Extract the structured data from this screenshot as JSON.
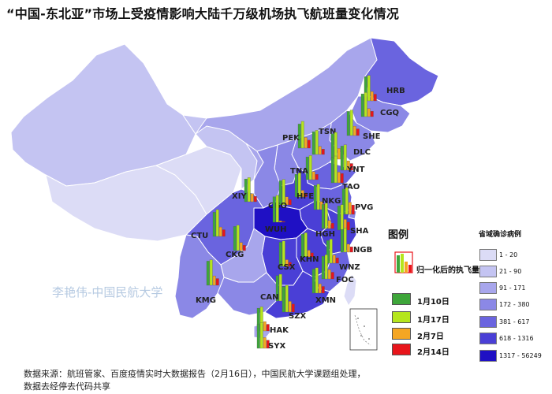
{
  "title": "“中国-东北亚”市场上受疫情影响大陆千万级机场执飞航班量变化情况",
  "watermark": "李艳伟-中国民航大学",
  "legend": {
    "title": "图例",
    "bar_label": "归一化后的执飞量",
    "dates": [
      {
        "label": "1月10日",
        "color": "#3ea63a"
      },
      {
        "label": "1月17日",
        "color": "#b5e61d"
      },
      {
        "label": "2月7日",
        "color": "#f5a623"
      },
      {
        "label": "2月14日",
        "color": "#e8151b"
      }
    ]
  },
  "case_legend": {
    "title": "省域确诊病例",
    "classes": [
      {
        "label": "1 - 20",
        "color": "#dcdcf6"
      },
      {
        "label": "21 - 90",
        "color": "#c4c4f2"
      },
      {
        "label": "91 - 171",
        "color": "#a8a6ec"
      },
      {
        "label": "172 - 380",
        "color": "#8b88e6"
      },
      {
        "label": "381 - 617",
        "color": "#6a64df"
      },
      {
        "label": "618 - 1316",
        "color": "#4a3fd6"
      },
      {
        "label": "1317 - 56249",
        "color": "#1f10c4"
      }
    ]
  },
  "airports": [
    {
      "code": "HRB",
      "values": [
        0.9,
        0.95,
        0.35,
        0.25
      ]
    },
    {
      "code": "CGQ",
      "values": [
        0.85,
        0.9,
        0.3,
        0.2
      ]
    },
    {
      "code": "SHE",
      "values": [
        0.9,
        0.95,
        0.35,
        0.25
      ]
    },
    {
      "code": "PEK",
      "values": [
        0.9,
        1.0,
        0.4,
        0.3
      ]
    },
    {
      "code": "TSN",
      "values": [
        0.85,
        0.9,
        0.3,
        0.2
      ]
    },
    {
      "code": "DLC",
      "values": [
        0.95,
        1.0,
        0.4,
        0.3
      ]
    },
    {
      "code": "YNT",
      "values": [
        0.9,
        0.95,
        0.35,
        0.25
      ]
    },
    {
      "code": "TNA",
      "values": [
        0.85,
        0.9,
        0.3,
        0.2
      ]
    },
    {
      "code": "TAO",
      "values": [
        0.95,
        1.0,
        0.4,
        0.35
      ]
    },
    {
      "code": "XIY",
      "values": [
        0.85,
        0.9,
        0.3,
        0.2
      ]
    },
    {
      "code": "CGO",
      "values": [
        0.9,
        0.95,
        0.3,
        0.2
      ]
    },
    {
      "code": "HFE",
      "values": [
        0.85,
        0.9,
        0.25,
        0.15
      ]
    },
    {
      "code": "NKG",
      "values": [
        0.9,
        0.95,
        0.3,
        0.2
      ]
    },
    {
      "code": "PVG",
      "values": [
        0.95,
        1.0,
        0.45,
        0.35
      ]
    },
    {
      "code": "SHA",
      "values": [
        0.9,
        0.95,
        0.4,
        0.3
      ]
    },
    {
      "code": "WUH",
      "values": [
        0.95,
        1.0,
        0.05,
        0.02
      ]
    },
    {
      "code": "HGH",
      "values": [
        0.9,
        0.95,
        0.3,
        0.2
      ]
    },
    {
      "code": "CTU",
      "values": [
        0.9,
        1.0,
        0.35,
        0.25
      ]
    },
    {
      "code": "CKG",
      "values": [
        0.9,
        0.95,
        0.3,
        0.2
      ]
    },
    {
      "code": "NGB",
      "values": [
        0.85,
        0.9,
        0.3,
        0.2
      ]
    },
    {
      "code": "KHN",
      "values": [
        0.85,
        0.9,
        0.25,
        0.15
      ]
    },
    {
      "code": "WNZ",
      "values": [
        0.85,
        0.9,
        0.3,
        0.2
      ]
    },
    {
      "code": "CSX",
      "values": [
        0.9,
        0.95,
        0.25,
        0.15
      ]
    },
    {
      "code": "FOC",
      "values": [
        0.85,
        0.9,
        0.35,
        0.25
      ]
    },
    {
      "code": "KMG",
      "values": [
        0.9,
        0.95,
        0.35,
        0.25
      ]
    },
    {
      "code": "CAN",
      "values": [
        0.95,
        1.0,
        0.4,
        0.3
      ]
    },
    {
      "code": "XMN",
      "values": [
        0.9,
        0.95,
        0.35,
        0.25
      ]
    },
    {
      "code": "SZX",
      "values": [
        0.95,
        1.0,
        0.4,
        0.3
      ]
    },
    {
      "code": "HAK",
      "values": [
        0.85,
        0.9,
        0.35,
        0.25
      ]
    },
    {
      "code": "SYX",
      "values": [
        0.9,
        0.95,
        0.4,
        0.3
      ]
    }
  ],
  "source_line1": "数据来源：航班管家、百度疫情实时大数据报告（2月16日），中国民航大学课题组处理，",
  "source_line2": "数据去经停去代码共享"
}
